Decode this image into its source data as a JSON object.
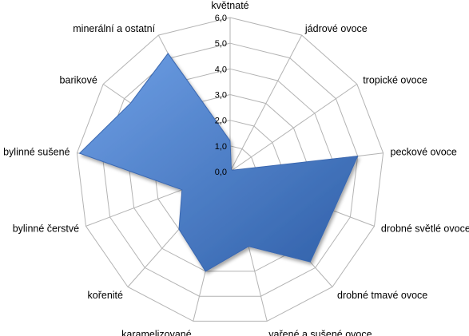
{
  "chart_data": {
    "type": "radar",
    "categories": [
      "květnaté",
      "jádrové ovoce",
      "tropické ovoce",
      "peckové ovoce",
      "drobné světlé ovoce",
      "drobné tmavé ovoce",
      "vařené a sušené ovoce",
      "karamelizované",
      "kořenité",
      "bylinné čerstvé",
      "bylinné sušené",
      "barikové",
      "minerální a ostatní"
    ],
    "series": [
      {
        "values": [
          1.2,
          0.1,
          0.1,
          5.0,
          4.3,
          4.7,
          3.0,
          4.0,
          3.0,
          2.0,
          5.9,
          4.7,
          5.2
        ]
      }
    ],
    "rlim": [
      0,
      6
    ],
    "ticks": [
      "0,0",
      "1,0",
      "2,0",
      "3,0",
      "4,0",
      "5,0",
      "6,0"
    ],
    "grid": true,
    "colors": {
      "fill": "#4a7fd0",
      "stroke": "#3a67b0",
      "grid": "#b3b3b3"
    }
  }
}
